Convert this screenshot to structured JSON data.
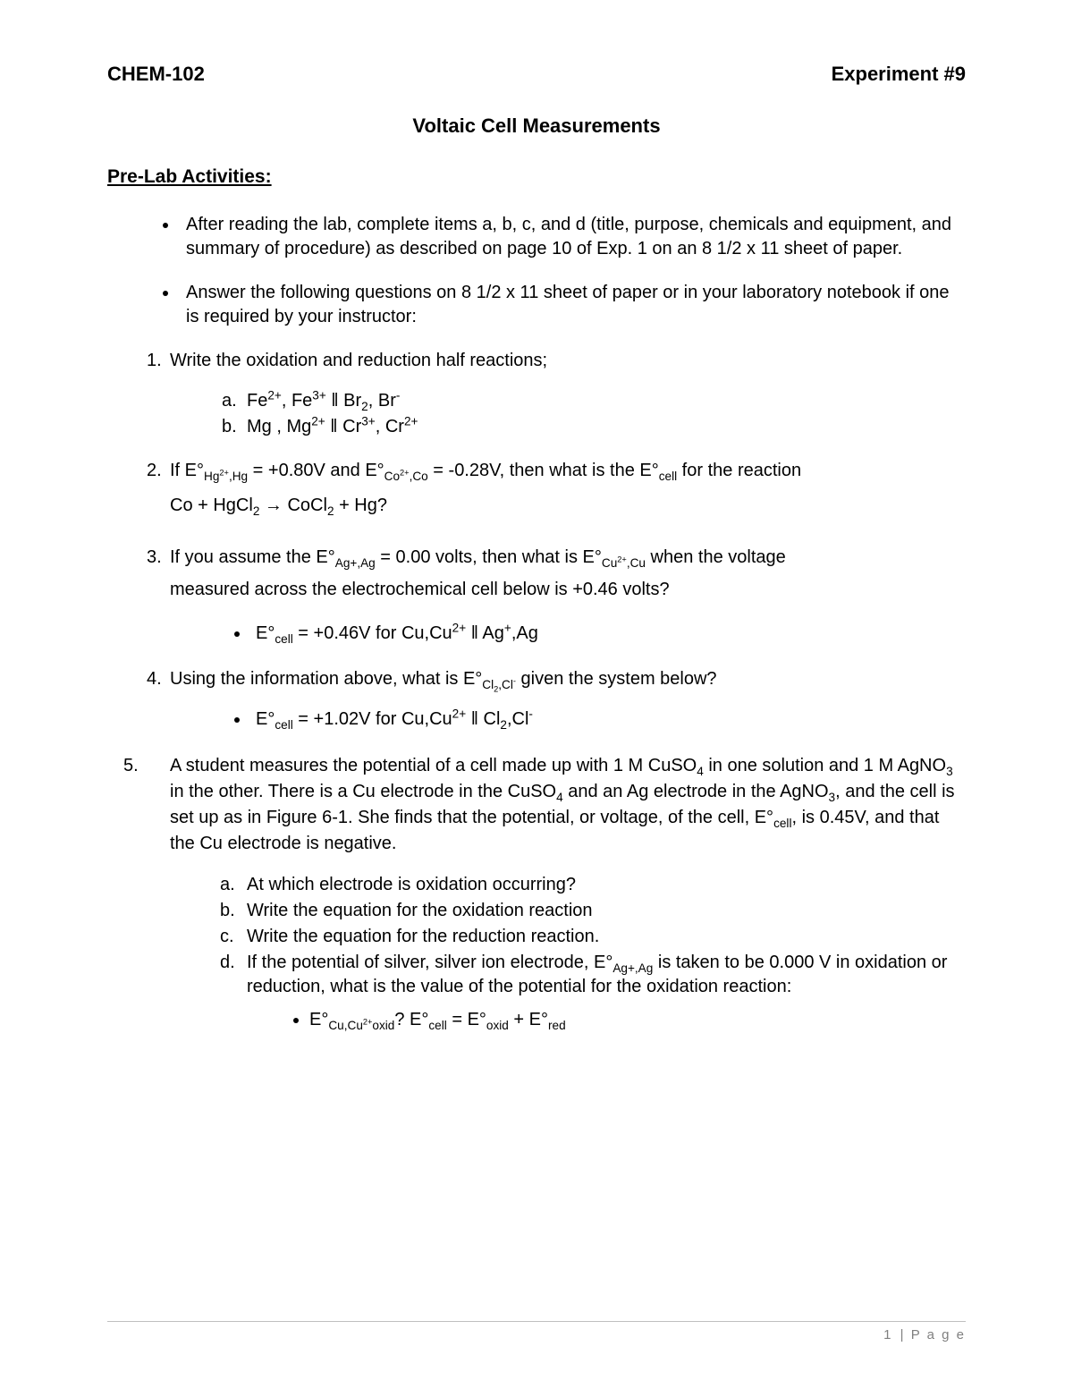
{
  "header": {
    "course": "CHEM-102",
    "experiment": "Experiment #9"
  },
  "title": "Voltaic Cell Measurements",
  "section_heading": "Pre-Lab Activities:",
  "intro_bullets": [
    "After reading the lab, complete items a, b, c, and d (title, purpose, chemicals and equipment, and summary of procedure) as described on page 10 of Exp. 1 on an 8 1/2 x 11 sheet of paper.",
    "Answer the following questions on 8 1/2 x 11 sheet of paper or in your laboratory notebook if one is required by your instructor:"
  ],
  "q1": {
    "text": "Write the oxidation and reduction half reactions;",
    "a_html": "Fe<sup>2+</sup>, Fe<sup>3+</sup> ‖ Br<sub>2</sub>, Br<sup>-</sup>",
    "b_html": "Mg , Mg<sup>2+</sup> ‖ Cr<sup>3+</sup>, Cr<sup>2+</sup>"
  },
  "q2": {
    "line_html": "If E°<sub>Hg<sup>2+</sup>,Hg</sub> = +0.80V and E°<sub>Co<sup>2+</sup>,Co</sub> = -0.28V, then what is the E°<sub>cell</sub> for the reaction",
    "eq_html": "Co + HgCl<sub>2</sub> → CoCl<sub>2</sub> + Hg?"
  },
  "q3": {
    "line1_html": "If you assume the E°<sub>Ag+,Ag</sub> = 0.00 volts, then what is E°<sub>Cu<sup>2+</sup>,Cu</sub> when the voltage",
    "line2_html": "measured across the electrochemical cell below is +0.46 volts?",
    "bullet_html": "E°<sub>cell</sub> = +0.46V for Cu,Cu<sup>2+</sup>  ‖ Ag<sup>+</sup>,Ag"
  },
  "q4": {
    "line_html": "Using the information above, what is E°<sub>Cl<sub>2</sub>,Cl<sup>-</sup></sub> given the system below?",
    "bullet_html": "E°<sub>cell</sub> = +1.02V for Cu,Cu<sup>2+</sup> ‖  Cl<sub>2</sub>,Cl<sup>-</sup>"
  },
  "q5": {
    "para_html": "A student measures the potential of a cell made up with 1 M CuSO<sub>4</sub> in one solution and 1 M AgNO<sub>3</sub> in the other.  There is a Cu electrode in the CuSO<sub>4</sub> and an Ag electrode in the AgNO<sub>3</sub>, and the cell is set up as in Figure 6-1.  She finds that the potential, or voltage, of the cell, E°<sub>cell</sub>, is 0.45V, and that the Cu electrode is negative.",
    "a": "At which electrode is oxidation occurring?",
    "b": "Write the equation for the oxidation reaction",
    "c": "Write the equation for the reduction reaction.",
    "d_html": "If the potential of silver, silver ion electrode, E°<sub>Ag+,Ag</sub> is taken to be 0.000 V in oxidation or reduction, what is the value of the potential for the oxidation reaction:",
    "d_bullet_html": "E°<sub>Cu,Cu<sup>2+</sup>oxid</sub>?  E°<sub>cell</sub>  =  E°<sub>oxid</sub> + E°<sub>red</sub>"
  },
  "footer": {
    "page_num": "1",
    "label": "P a g e"
  }
}
